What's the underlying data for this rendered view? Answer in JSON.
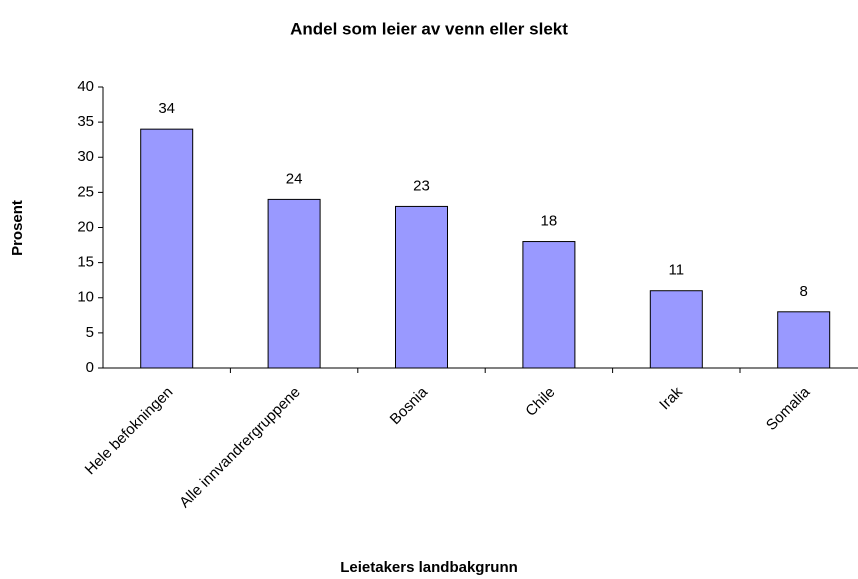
{
  "chart_data": {
    "type": "bar",
    "title": "Andel som leier av venn eller slekt",
    "x_label": "Leietakers landbakgrunn",
    "y_label": "Prosent",
    "categories": [
      "Hele befokningen",
      "Alle innvandrergruppene",
      "Bosnia",
      "Chile",
      "Irak",
      "Somalia"
    ],
    "values": [
      34,
      24,
      23,
      18,
      11,
      8
    ],
    "color": "#9999ff",
    "ylim": [
      0,
      40
    ],
    "yticks": [
      0,
      5,
      10,
      15,
      20,
      25,
      30,
      35,
      40
    ],
    "grid": false
  }
}
